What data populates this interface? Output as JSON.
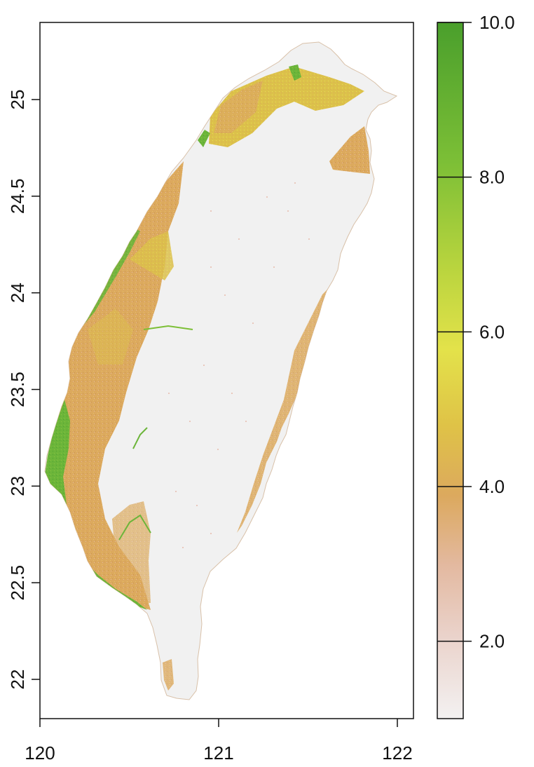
{
  "map": {
    "x_ticks": [
      "120",
      "121",
      "122"
    ],
    "y_ticks": [
      "22",
      "22.5",
      "23",
      "23.5",
      "24",
      "24.5",
      "25"
    ],
    "xlim": [
      120.0,
      122.1
    ],
    "ylim": [
      21.8,
      25.4
    ]
  },
  "legend": {
    "ticks": [
      "2.0",
      "4.0",
      "6.0",
      "8.0",
      "10.0"
    ],
    "range": [
      1.0,
      10.0
    ],
    "colors": {
      "low": "#f2f2f2",
      "pink": "#e6b7a6",
      "tan": "#dba55a",
      "yellow": "#e3e24a",
      "green": "#4ea22e"
    }
  }
}
